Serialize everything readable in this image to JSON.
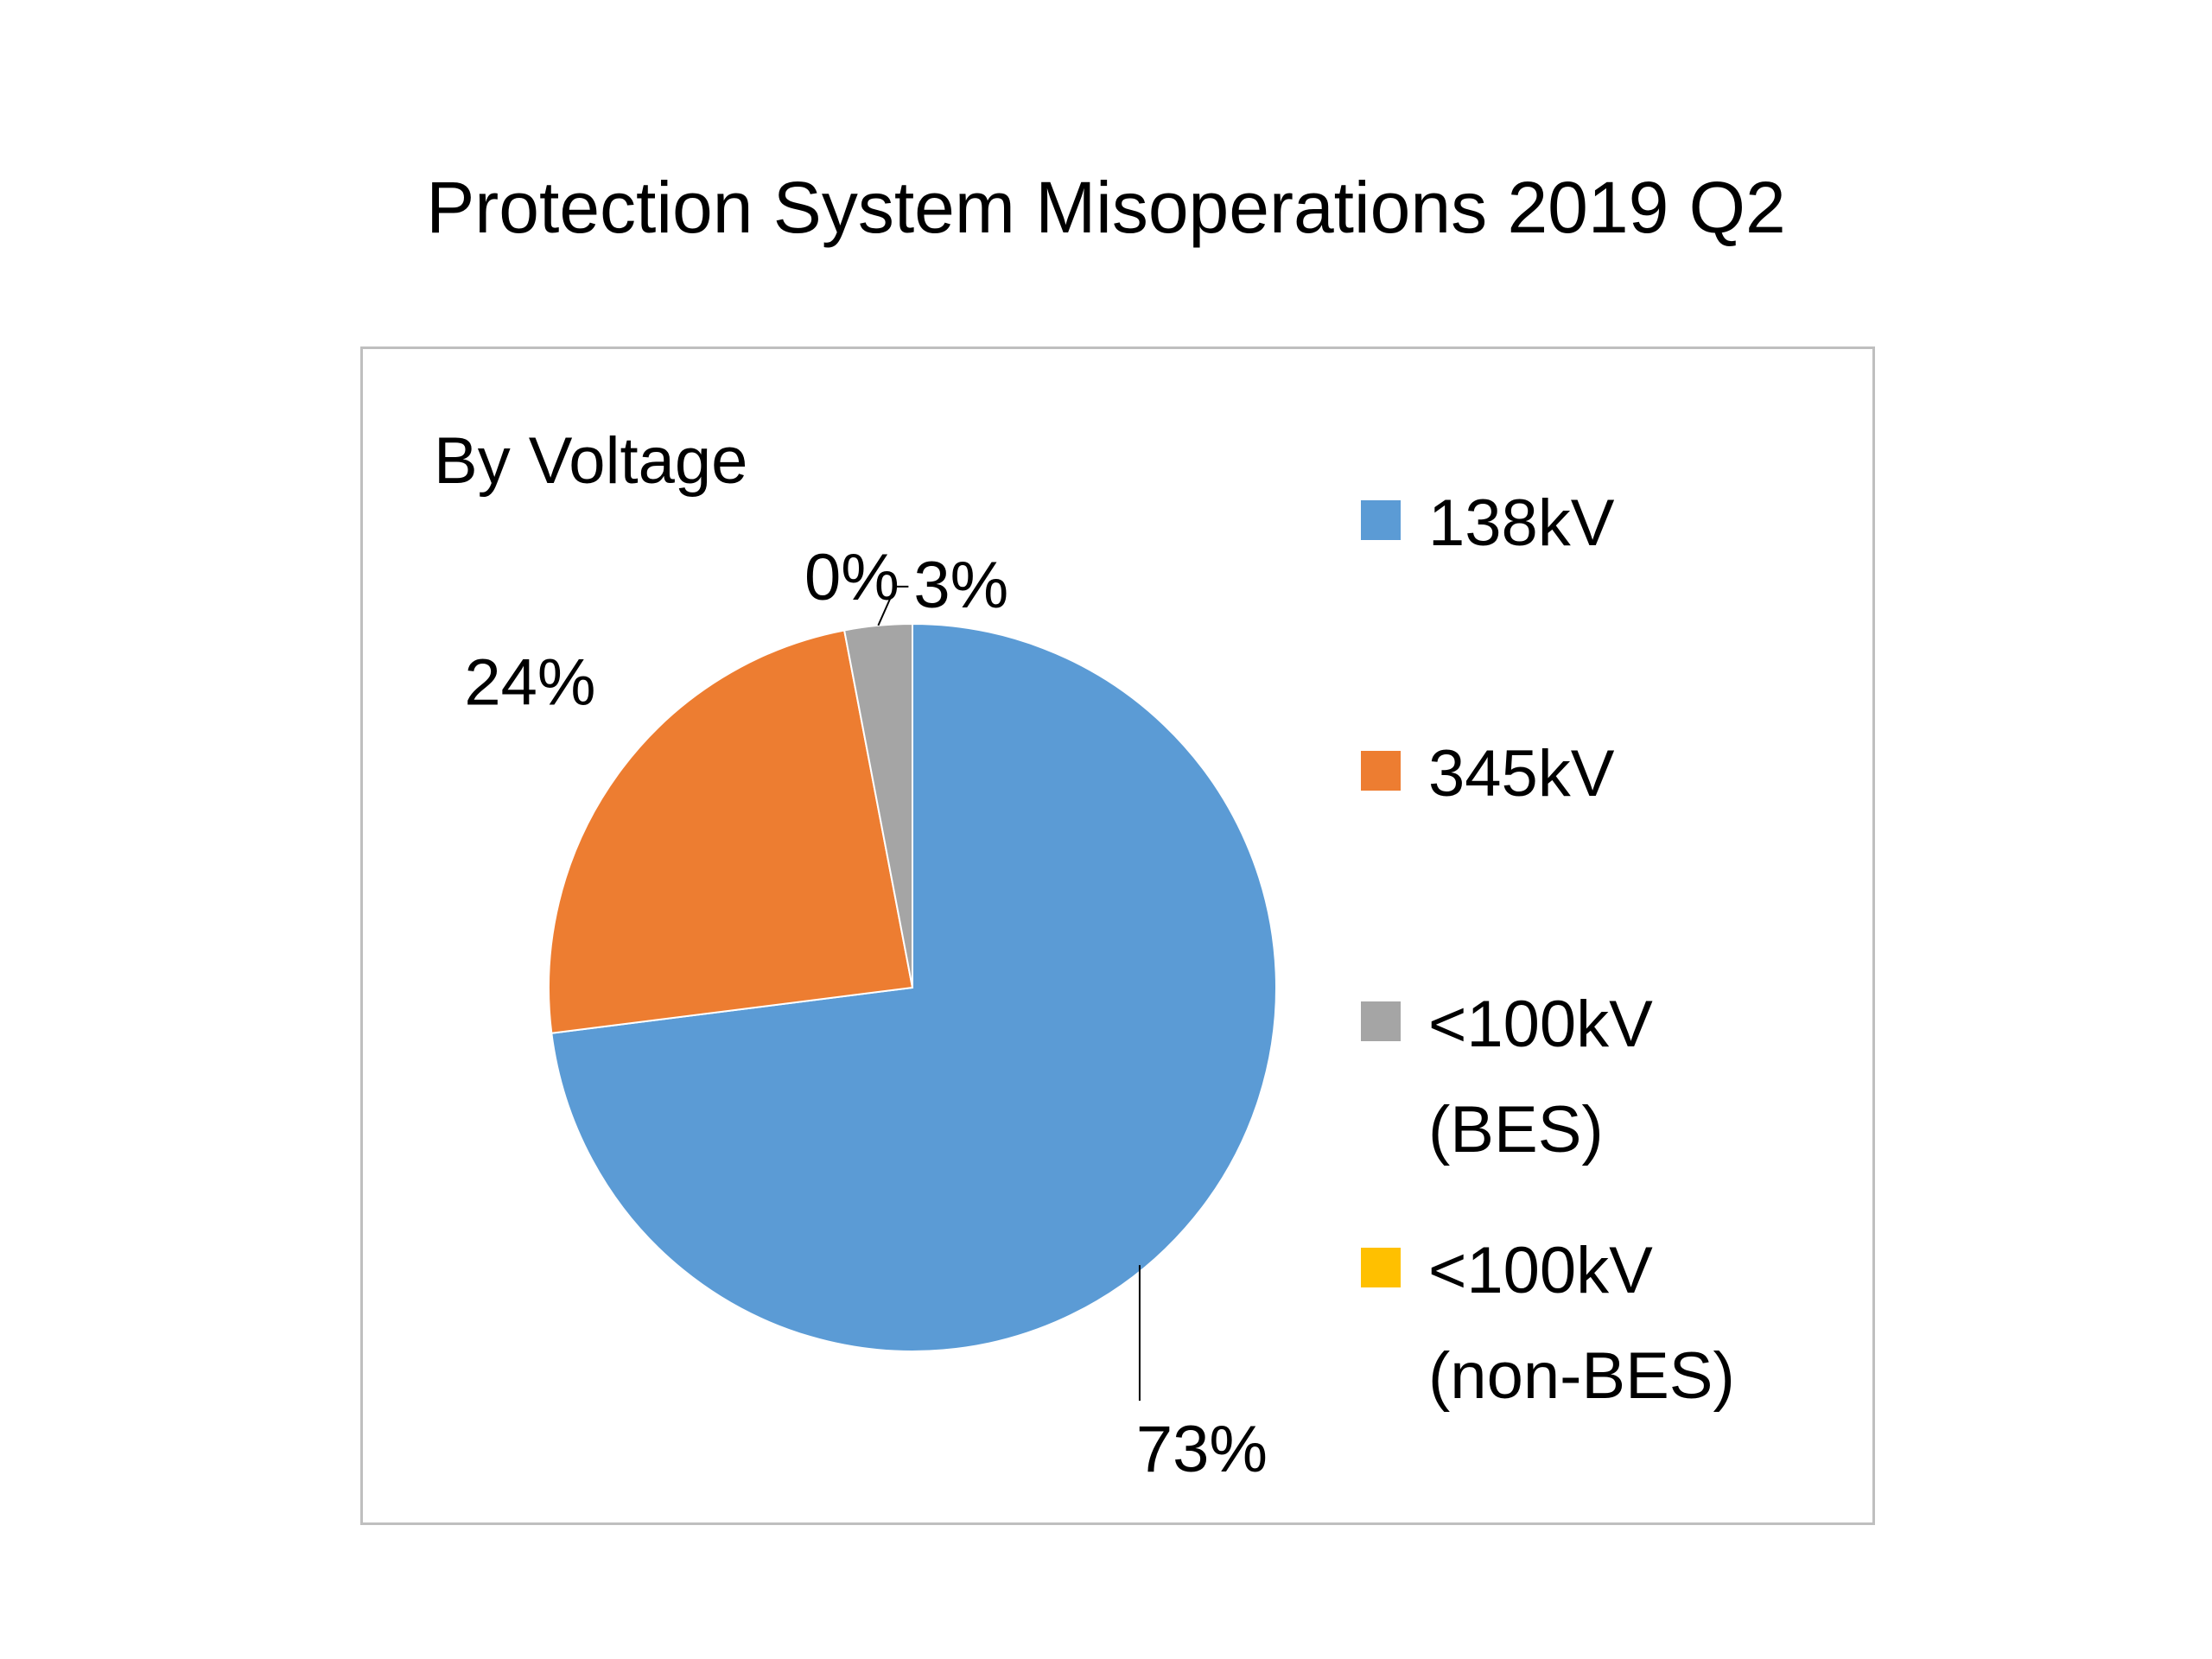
{
  "slide": {
    "title": "Protection System Misoperations 2019 Q2"
  },
  "chart_data": {
    "type": "pie",
    "title": "By Voltage",
    "start_angle_deg": 0,
    "direction": "clockwise",
    "slices": [
      {
        "name": "138kV",
        "value": 73,
        "label": "73%",
        "color": "#5b9bd5"
      },
      {
        "name": "345kV",
        "value": 24,
        "label": "24%",
        "color": "#ed7d31"
      },
      {
        "name": "<100kV (BES)",
        "value": 3,
        "label": "3%",
        "color": "#a5a5a5"
      },
      {
        "name": "<100kV (non-BES)",
        "value": 0,
        "label": "0%",
        "color": "#ffc000"
      }
    ],
    "legend": {
      "placement": "right",
      "entries": [
        {
          "lines": [
            "138kV"
          ],
          "color": "#5b9bd5"
        },
        {
          "lines": [
            "345kV"
          ],
          "color": "#ed7d31"
        },
        {
          "lines": [
            "<100kV",
            "(BES)"
          ],
          "color": "#a5a5a5"
        },
        {
          "lines": [
            "<100kV",
            "(non-BES)"
          ],
          "color": "#ffc000"
        }
      ]
    }
  }
}
